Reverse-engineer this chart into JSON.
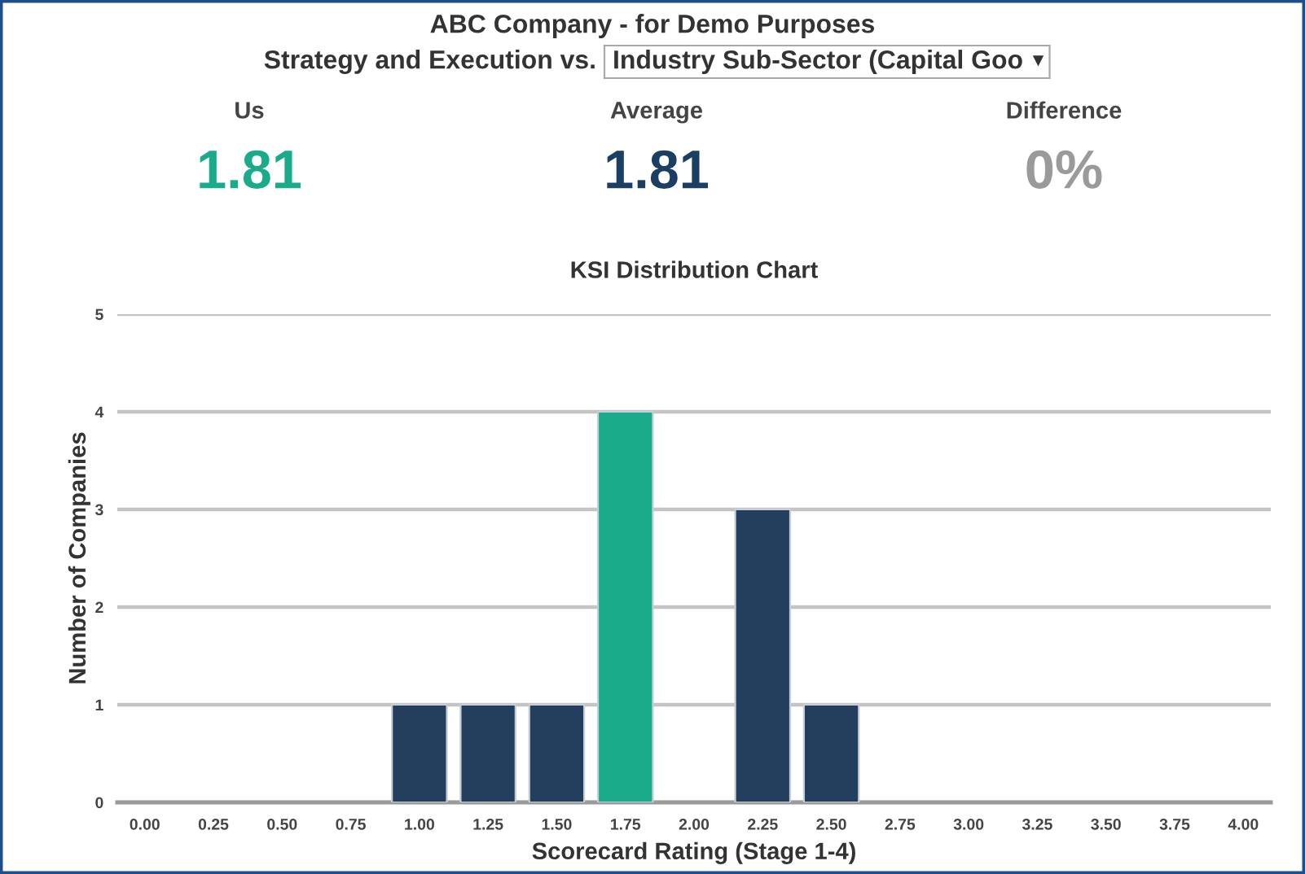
{
  "chart_data": [
    {
      "type": "other",
      "title": "ABC Company - for Demo Purposes",
      "subtitle": "Strategy and Execution vs.",
      "annotations": [
        "Industry Sub-Sector (Capital Goo",
        "Us",
        "1.81",
        "Average",
        "1.81",
        "Difference",
        "0%"
      ],
      "colors": [
        "#333333",
        "#444444",
        "#1aab8a",
        "#444444",
        "#1b3f63",
        "#444444",
        "#9a9a9a"
      ]
    },
    {
      "type": "bar",
      "title": "KSI Distribution Chart",
      "xlabel": "Scorecard Rating (Stage 1-4)",
      "ylabel": "Number of Companies",
      "categories": [
        "0.00",
        "0.25",
        "0.50",
        "0.75",
        "1.00",
        "1.25",
        "1.50",
        "1.75",
        "2.00",
        "2.25",
        "2.50",
        "2.75",
        "3.00",
        "3.25",
        "3.50",
        "3.75",
        "4.00"
      ],
      "values": [
        0,
        0,
        0,
        0,
        1,
        1,
        1,
        4,
        0,
        3,
        1,
        0,
        0,
        0,
        0,
        0,
        0
      ],
      "colors": [
        "#243f5e",
        "#243f5e",
        "#243f5e",
        "#243f5e",
        "#243f5e",
        "#243f5e",
        "#243f5e",
        "#1aab8a",
        "#243f5e",
        "#243f5e",
        "#243f5e",
        "#243f5e",
        "#243f5e",
        "#243f5e",
        "#243f5e",
        "#243f5e",
        "#243f5e"
      ],
      "ylim": [
        0,
        5
      ],
      "yticks": [
        0,
        1,
        2,
        3,
        4,
        5
      ],
      "grid": "y"
    }
  ]
}
